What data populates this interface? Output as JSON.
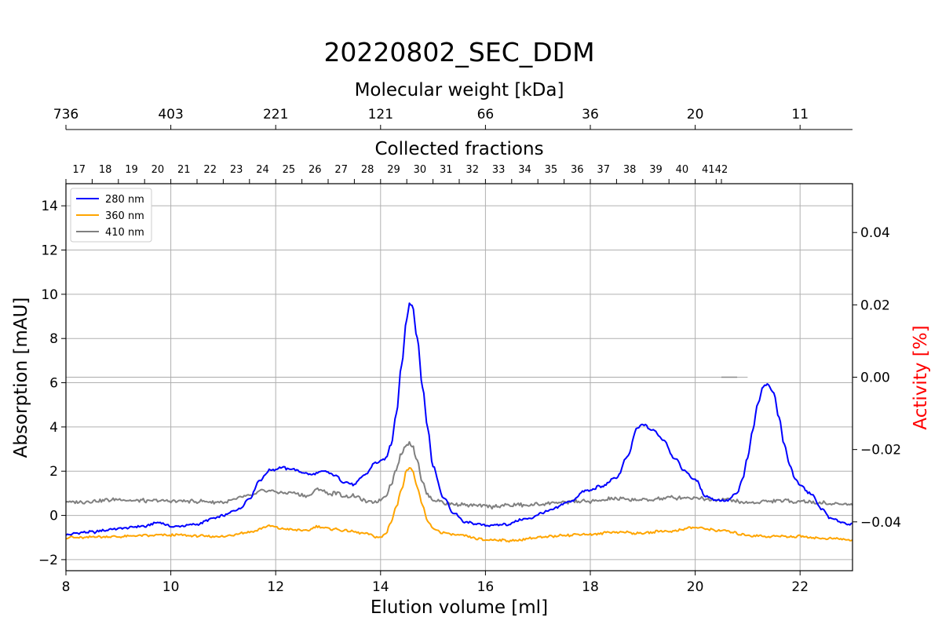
{
  "chart_data": {
    "type": "line",
    "title": "20220802_SEC_DDM",
    "xlabel": "Elution volume [ml]",
    "ylabel": "Absorption [mAU]",
    "y2label": "Activity [%]",
    "top_axis1_label": "Molecular weight [kDa]",
    "top_axis2_label": "Collected fractions",
    "xlim": [
      8,
      23
    ],
    "ylim": [
      -2.5,
      15
    ],
    "y2lim": [
      -0.0535,
      0.0535
    ],
    "xticks": [
      8,
      10,
      12,
      14,
      16,
      18,
      20,
      22
    ],
    "yticks": [
      -2,
      0,
      2,
      4,
      6,
      8,
      10,
      12,
      14
    ],
    "y2ticks": [
      0.04,
      0.02,
      0.0,
      -0.02,
      -0.04
    ],
    "y2tick_labels": [
      "0.04",
      "0.02",
      "0.00",
      "−0.02",
      "−0.04"
    ],
    "mw_ticks": [
      {
        "x": 8,
        "label": "736"
      },
      {
        "x": 10,
        "label": "403"
      },
      {
        "x": 12,
        "label": "221"
      },
      {
        "x": 14,
        "label": "121"
      },
      {
        "x": 16,
        "label": "66"
      },
      {
        "x": 18,
        "label": "36"
      },
      {
        "x": 20,
        "label": "20"
      },
      {
        "x": 22,
        "label": "11"
      }
    ],
    "fractions": [
      {
        "label": "17",
        "x": 8.25
      },
      {
        "label": "18",
        "x": 8.75
      },
      {
        "label": "19",
        "x": 9.25
      },
      {
        "label": "20",
        "x": 9.75
      },
      {
        "label": "21",
        "x": 10.25
      },
      {
        "label": "22",
        "x": 10.75
      },
      {
        "label": "23",
        "x": 11.25
      },
      {
        "label": "24",
        "x": 11.75
      },
      {
        "label": "25",
        "x": 12.25
      },
      {
        "label": "26",
        "x": 12.75
      },
      {
        "label": "27",
        "x": 13.25
      },
      {
        "label": "28",
        "x": 13.75
      },
      {
        "label": "29",
        "x": 14.25
      },
      {
        "label": "30",
        "x": 14.75
      },
      {
        "label": "31",
        "x": 15.25
      },
      {
        "label": "32",
        "x": 15.75
      },
      {
        "label": "33",
        "x": 16.25
      },
      {
        "label": "34",
        "x": 16.75
      },
      {
        "label": "35",
        "x": 17.25
      },
      {
        "label": "36",
        "x": 17.75
      },
      {
        "label": "37",
        "x": 18.25
      },
      {
        "label": "38",
        "x": 18.75
      },
      {
        "label": "39",
        "x": 19.25
      },
      {
        "label": "40",
        "x": 19.75
      },
      {
        "label": "41",
        "x": 20.25
      },
      {
        "label": "42",
        "x": 20.5
      }
    ],
    "fraction_ticks": [
      8.0,
      8.5,
      9.0,
      9.5,
      10.0,
      10.5,
      11.0,
      11.5,
      12.0,
      12.5,
      13.0,
      13.5,
      14.0,
      14.5,
      15.0,
      15.5,
      16.0,
      16.5,
      17.0,
      17.5,
      18.0,
      18.5,
      19.0,
      19.5,
      20.0,
      20.4,
      20.5
    ],
    "grid": true,
    "legend_position": "top-left",
    "series": [
      {
        "name": "280 nm",
        "color": "#0000ff",
        "x": [
          8.0,
          8.5,
          9.0,
          9.5,
          9.75,
          10.0,
          10.5,
          10.8,
          11.0,
          11.3,
          11.5,
          11.7,
          11.9,
          12.1,
          12.3,
          12.5,
          12.7,
          12.9,
          13.1,
          13.3,
          13.5,
          13.7,
          13.9,
          14.0,
          14.1,
          14.2,
          14.3,
          14.4,
          14.5,
          14.55,
          14.6,
          14.7,
          14.8,
          14.9,
          15.0,
          15.2,
          15.4,
          15.6,
          16.0,
          16.4,
          16.8,
          17.2,
          17.6,
          17.9,
          18.2,
          18.5,
          18.7,
          18.9,
          19.0,
          19.2,
          19.4,
          19.6,
          19.8,
          20.0,
          20.2,
          20.4,
          20.6,
          20.8,
          20.9,
          21.0,
          21.1,
          21.2,
          21.3,
          21.4,
          21.5,
          21.6,
          21.7,
          21.8,
          21.9,
          22.0,
          22.2,
          22.4,
          22.6,
          22.8,
          23.0
        ],
        "y": [
          -0.85,
          -0.75,
          -0.6,
          -0.5,
          -0.3,
          -0.5,
          -0.4,
          -0.15,
          0.0,
          0.3,
          0.8,
          1.6,
          2.05,
          2.15,
          2.1,
          1.95,
          1.85,
          2.0,
          1.85,
          1.5,
          1.4,
          1.85,
          2.4,
          2.45,
          2.6,
          3.2,
          4.6,
          6.8,
          8.9,
          9.6,
          9.5,
          8.0,
          5.8,
          3.9,
          2.2,
          0.8,
          0.1,
          -0.3,
          -0.45,
          -0.4,
          -0.15,
          0.2,
          0.6,
          1.1,
          1.3,
          1.7,
          2.6,
          3.95,
          4.1,
          3.85,
          3.4,
          2.6,
          2.0,
          1.6,
          0.9,
          0.7,
          0.65,
          1.0,
          1.6,
          2.6,
          3.9,
          5.1,
          5.85,
          5.9,
          5.5,
          4.4,
          3.2,
          2.3,
          1.7,
          1.35,
          1.0,
          0.3,
          -0.15,
          -0.3,
          -0.4
        ]
      },
      {
        "name": "360 nm",
        "color": "#ffa500",
        "x": [
          8.0,
          9.0,
          10.0,
          11.0,
          11.5,
          11.9,
          12.1,
          12.4,
          12.6,
          12.8,
          13.0,
          13.4,
          13.7,
          14.0,
          14.1,
          14.2,
          14.3,
          14.4,
          14.5,
          14.55,
          14.6,
          14.7,
          14.8,
          14.9,
          15.0,
          15.2,
          15.5,
          16.0,
          16.5,
          17.0,
          17.5,
          18.0,
          18.5,
          19.0,
          19.5,
          20.0,
          20.5,
          21.0,
          21.5,
          22.0,
          22.5,
          23.0
        ],
        "y": [
          -1.0,
          -0.95,
          -0.9,
          -0.95,
          -0.75,
          -0.5,
          -0.6,
          -0.65,
          -0.7,
          -0.5,
          -0.6,
          -0.7,
          -0.8,
          -1.0,
          -0.8,
          -0.3,
          0.4,
          1.2,
          2.0,
          2.2,
          2.1,
          1.3,
          0.4,
          -0.3,
          -0.6,
          -0.8,
          -0.9,
          -1.1,
          -1.15,
          -1.0,
          -0.9,
          -0.85,
          -0.75,
          -0.8,
          -0.7,
          -0.55,
          -0.7,
          -0.9,
          -0.95,
          -0.95,
          -1.05,
          -1.1
        ]
      },
      {
        "name": "410 nm",
        "color": "#808080",
        "x": [
          8.0,
          9.0,
          10.0,
          11.0,
          11.5,
          11.8,
          12.0,
          12.4,
          12.6,
          12.8,
          13.0,
          13.4,
          13.8,
          14.0,
          14.1,
          14.2,
          14.3,
          14.4,
          14.5,
          14.55,
          14.6,
          14.7,
          14.8,
          14.9,
          15.0,
          15.4,
          16.0,
          16.5,
          17.0,
          17.5,
          18.0,
          18.5,
          19.0,
          19.5,
          20.0,
          20.5,
          21.0,
          21.5,
          22.0,
          22.5,
          23.0
        ],
        "y": [
          0.6,
          0.7,
          0.65,
          0.6,
          0.85,
          1.15,
          1.05,
          1.0,
          0.85,
          1.2,
          1.0,
          0.9,
          0.6,
          0.7,
          0.9,
          1.4,
          2.1,
          2.8,
          3.2,
          3.3,
          3.15,
          2.5,
          1.5,
          0.9,
          0.7,
          0.5,
          0.4,
          0.45,
          0.5,
          0.6,
          0.65,
          0.75,
          0.7,
          0.8,
          0.8,
          0.7,
          0.6,
          0.65,
          0.65,
          0.55,
          0.5
        ]
      }
    ],
    "activity_reference_line": {
      "y2": 0.0,
      "x_range": [
        8,
        21
      ],
      "color": "#aaaaaa"
    },
    "activity_marker": {
      "y2": 0.0,
      "x_range": [
        20.5,
        20.8
      ],
      "color": "#888888"
    }
  }
}
